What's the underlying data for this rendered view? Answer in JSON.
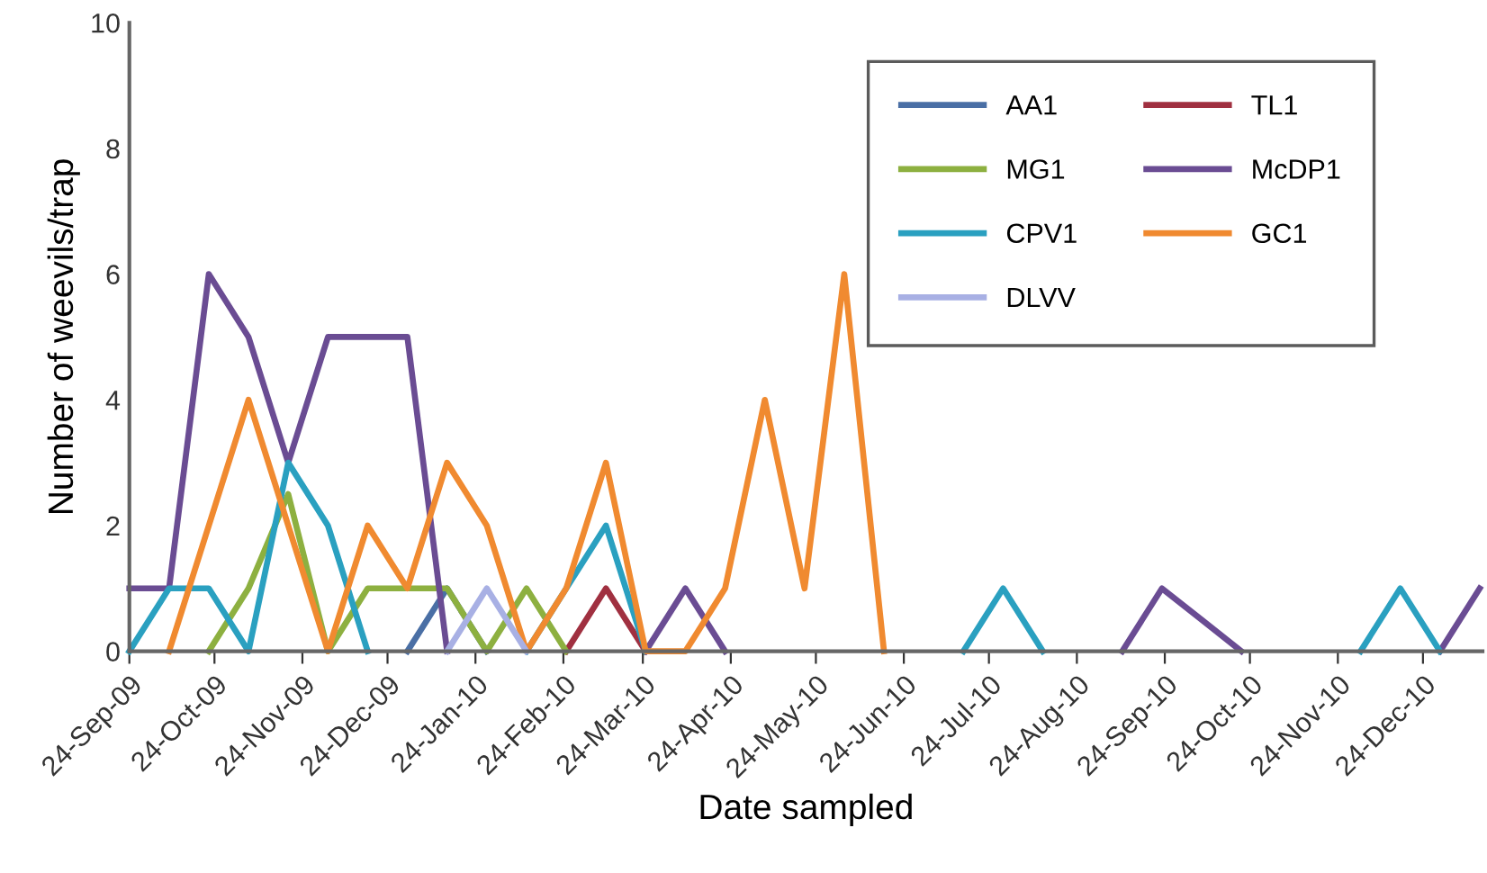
{
  "chart_data": {
    "type": "line",
    "xlabel": "Date sampled",
    "ylabel": "Number of weevils/trap",
    "x": [
      "2009-09-24",
      "2009-10-08",
      "2009-10-22",
      "2009-11-05",
      "2009-11-19",
      "2009-12-03",
      "2009-12-17",
      "2009-12-31",
      "2010-01-14",
      "2010-01-28",
      "2010-02-11",
      "2010-02-25",
      "2010-03-11",
      "2010-03-25",
      "2010-04-08",
      "2010-04-22",
      "2010-05-06",
      "2010-05-20",
      "2010-06-03",
      "2010-06-17",
      "2010-07-01",
      "2010-07-15",
      "2010-07-29",
      "2010-08-12",
      "2010-08-26",
      "2010-09-09",
      "2010-09-23",
      "2010-10-07",
      "2010-10-21",
      "2010-11-04",
      "2010-11-18",
      "2010-12-02",
      "2010-12-16",
      "2010-12-30",
      "2011-01-13"
    ],
    "series": [
      {
        "name": "AA1",
        "color": "#4a6fa5",
        "values": [
          null,
          null,
          null,
          null,
          null,
          null,
          null,
          0,
          1,
          0,
          null,
          null,
          null,
          null,
          null,
          null,
          null,
          null,
          null,
          null,
          null,
          null,
          null,
          null,
          null,
          null,
          null,
          null,
          null,
          null,
          null,
          null,
          null,
          null,
          null
        ]
      },
      {
        "name": "TL1",
        "color": "#a03040",
        "values": [
          null,
          null,
          null,
          null,
          null,
          null,
          null,
          null,
          null,
          null,
          null,
          0,
          1,
          0,
          null,
          null,
          null,
          null,
          null,
          null,
          null,
          null,
          null,
          null,
          null,
          null,
          null,
          null,
          null,
          null,
          null,
          null,
          null,
          null,
          null
        ]
      },
      {
        "name": "MG1",
        "color": "#8db040",
        "values": [
          null,
          null,
          0,
          1,
          2.5,
          0,
          1,
          1,
          1,
          0,
          1,
          0,
          null,
          null,
          null,
          null,
          null,
          null,
          null,
          null,
          null,
          null,
          null,
          null,
          null,
          null,
          null,
          null,
          null,
          null,
          null,
          null,
          null,
          null,
          null
        ]
      },
      {
        "name": "McDP1",
        "color": "#6a4c93",
        "values": [
          1,
          1,
          6,
          5,
          3,
          5,
          5,
          5,
          0,
          null,
          null,
          null,
          null,
          0,
          1,
          0,
          null,
          null,
          null,
          null,
          null,
          null,
          null,
          null,
          null,
          0,
          1,
          0.5,
          0,
          null,
          null,
          null,
          null,
          0,
          1
        ]
      },
      {
        "name": "CPV1",
        "color": "#2aa0c0",
        "values": [
          0,
          1,
          1,
          0,
          3,
          2,
          0,
          null,
          null,
          null,
          0,
          1,
          2,
          0,
          null,
          null,
          null,
          null,
          null,
          null,
          null,
          0,
          1,
          0,
          null,
          null,
          null,
          null,
          null,
          null,
          null,
          0,
          1,
          0,
          null
        ]
      },
      {
        "name": "GC1",
        "color": "#f08a30",
        "values": [
          null,
          0,
          2,
          4,
          2,
          0,
          2,
          1,
          3,
          2,
          0,
          1,
          3,
          0,
          0,
          1,
          4,
          1,
          6,
          0,
          null,
          null,
          null,
          null,
          null,
          null,
          null,
          null,
          null,
          null,
          null,
          null,
          null,
          null,
          null
        ]
      },
      {
        "name": "DLVV",
        "color": "#a8b0e4",
        "values": [
          null,
          null,
          null,
          null,
          null,
          null,
          null,
          null,
          0,
          1,
          0,
          null,
          null,
          null,
          null,
          null,
          null,
          null,
          null,
          null,
          null,
          null,
          null,
          null,
          null,
          null,
          null,
          null,
          null,
          null,
          null,
          null,
          null,
          null,
          null
        ]
      }
    ],
    "xlim": [
      "2009-09-24",
      "2011-01-14"
    ],
    "xticks": [
      {
        "value": "2009-09-24",
        "label": "24-Sep-09"
      },
      {
        "value": "2009-10-24",
        "label": "24-Oct-09"
      },
      {
        "value": "2009-11-24",
        "label": "24-Nov-09"
      },
      {
        "value": "2009-12-24",
        "label": "24-Dec-09"
      },
      {
        "value": "2010-01-24",
        "label": "24-Jan-10"
      },
      {
        "value": "2010-02-24",
        "label": "24-Feb-10"
      },
      {
        "value": "2010-03-24",
        "label": "24-Mar-10"
      },
      {
        "value": "2010-04-24",
        "label": "24-Apr-10"
      },
      {
        "value": "2010-05-24",
        "label": "24-May-10"
      },
      {
        "value": "2010-06-24",
        "label": "24-Jun-10"
      },
      {
        "value": "2010-07-24",
        "label": "24-Jul-10"
      },
      {
        "value": "2010-08-24",
        "label": "24-Aug-10"
      },
      {
        "value": "2010-09-24",
        "label": "24-Sep-10"
      },
      {
        "value": "2010-10-24",
        "label": "24-Oct-10"
      },
      {
        "value": "2010-11-24",
        "label": "24-Nov-10"
      },
      {
        "value": "2010-12-24",
        "label": "24-Dec-10"
      }
    ],
    "ylim": [
      0,
      10
    ],
    "yticks": [
      0,
      2,
      4,
      6,
      8,
      10
    ],
    "grid": false,
    "legend": "top right",
    "marker": "none",
    "line_style": "solid"
  }
}
